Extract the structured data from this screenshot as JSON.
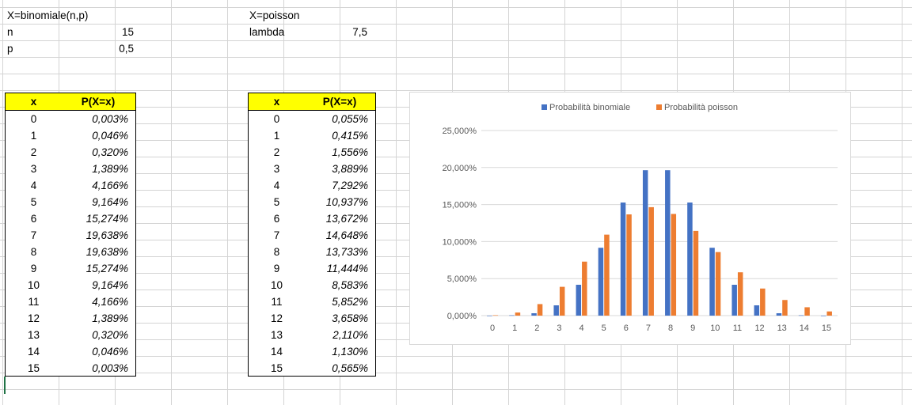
{
  "binom": {
    "title": "X=binomiale(n,p)",
    "n_label": "n",
    "n_value": "15",
    "p_label": "p",
    "p_value": "0,5",
    "header_x": "x",
    "header_p": "P(X=x)",
    "rows": [
      {
        "x": "0",
        "p": "0,003%"
      },
      {
        "x": "1",
        "p": "0,046%"
      },
      {
        "x": "2",
        "p": "0,320%"
      },
      {
        "x": "3",
        "p": "1,389%"
      },
      {
        "x": "4",
        "p": "4,166%"
      },
      {
        "x": "5",
        "p": "9,164%"
      },
      {
        "x": "6",
        "p": "15,274%"
      },
      {
        "x": "7",
        "p": "19,638%"
      },
      {
        "x": "8",
        "p": "19,638%"
      },
      {
        "x": "9",
        "p": "15,274%"
      },
      {
        "x": "10",
        "p": "9,164%"
      },
      {
        "x": "11",
        "p": "4,166%"
      },
      {
        "x": "12",
        "p": "1,389%"
      },
      {
        "x": "13",
        "p": "0,320%"
      },
      {
        "x": "14",
        "p": "0,046%"
      },
      {
        "x": "15",
        "p": "0,003%"
      }
    ]
  },
  "poisson": {
    "title": "X=poisson",
    "lambda_label": "lambda",
    "lambda_value": "7,5",
    "header_x": "x",
    "header_p": "P(X=x)",
    "rows": [
      {
        "x": "0",
        "p": "0,055%"
      },
      {
        "x": "1",
        "p": "0,415%"
      },
      {
        "x": "2",
        "p": "1,556%"
      },
      {
        "x": "3",
        "p": "3,889%"
      },
      {
        "x": "4",
        "p": "7,292%"
      },
      {
        "x": "5",
        "p": "10,937%"
      },
      {
        "x": "6",
        "p": "13,672%"
      },
      {
        "x": "7",
        "p": "14,648%"
      },
      {
        "x": "8",
        "p": "13,733%"
      },
      {
        "x": "9",
        "p": "11,444%"
      },
      {
        "x": "10",
        "p": "8,583%"
      },
      {
        "x": "11",
        "p": "5,852%"
      },
      {
        "x": "12",
        "p": "3,658%"
      },
      {
        "x": "13",
        "p": "2,110%"
      },
      {
        "x": "14",
        "p": "1,130%"
      },
      {
        "x": "15",
        "p": "0,565%"
      }
    ]
  },
  "chart_data": {
    "type": "bar",
    "categories": [
      "0",
      "1",
      "2",
      "3",
      "4",
      "5",
      "6",
      "7",
      "8",
      "9",
      "10",
      "11",
      "12",
      "13",
      "14",
      "15"
    ],
    "series": [
      {
        "name": "Probabilità binomiale",
        "color": "#4472c4",
        "values": [
          0.003,
          0.046,
          0.32,
          1.389,
          4.166,
          9.164,
          15.274,
          19.638,
          19.638,
          15.274,
          9.164,
          4.166,
          1.389,
          0.32,
          0.046,
          0.003
        ]
      },
      {
        "name": "Probabilità poisson",
        "color": "#ed7d31",
        "values": [
          0.055,
          0.415,
          1.556,
          3.889,
          7.292,
          10.937,
          13.672,
          14.648,
          13.733,
          11.444,
          8.583,
          5.852,
          3.658,
          2.11,
          1.13,
          0.565
        ]
      }
    ],
    "y_ticks": [
      "0,000%",
      "5,000%",
      "10,000%",
      "15,000%",
      "20,000%",
      "25,000%"
    ],
    "ylim": [
      0,
      25
    ],
    "grid": true,
    "legend_position": "top"
  }
}
